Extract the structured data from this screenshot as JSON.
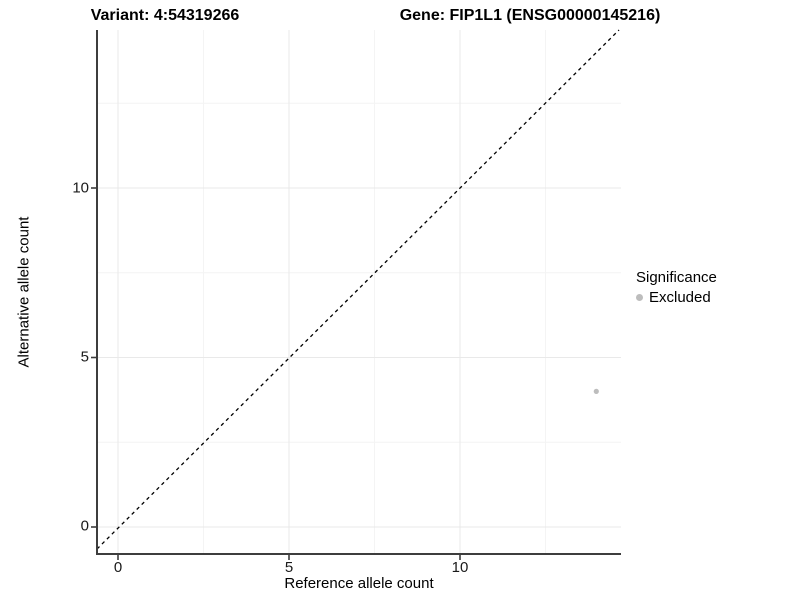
{
  "titles": {
    "variant": "Variant: 4:54319266",
    "gene": "Gene: FIP1L1 (ENSG00000145216)"
  },
  "axes": {
    "x_label": "Reference allele count",
    "y_label": "Alternative allele count"
  },
  "legend": {
    "title": "Significance",
    "items": [
      {
        "label": "Excluded",
        "color": "#bdbdbd"
      }
    ]
  },
  "chart_data": {
    "type": "scatter",
    "title": "Variant: 4:54319266 — Gene: FIP1L1 (ENSG00000145216)",
    "xlabel": "Reference allele count",
    "ylabel": "Alternative allele count",
    "x_ticks": [
      "0",
      "5",
      "10"
    ],
    "y_ticks": [
      "0",
      "5",
      "10"
    ],
    "x_tick_values": [
      0,
      5,
      10
    ],
    "y_tick_values": [
      0,
      5,
      10
    ],
    "xlim": [
      -0.7,
      14.7
    ],
    "ylim": [
      -0.8,
      14.7
    ],
    "grid": "major+minor",
    "legend_position": "right",
    "series": [
      {
        "name": "Excluded",
        "color": "#bdbdbd",
        "points": [
          {
            "x": 14,
            "y": 4
          }
        ]
      }
    ],
    "reference_line": {
      "type": "identity",
      "slope": 1,
      "intercept": 0,
      "style": "dashed",
      "color": "#000000"
    }
  }
}
